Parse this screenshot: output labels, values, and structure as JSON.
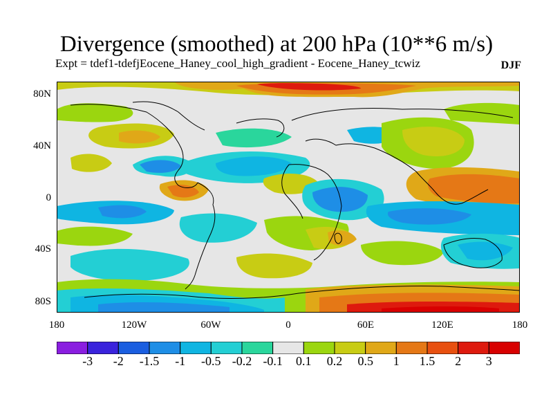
{
  "title": "Divergence (smoothed) at 200 hPa (10**6 m/s)",
  "subtitle": "Expt = tdef1-tdefjEocene_Haney_cool_high_gradient - Eocene_Haney_tcwiz",
  "season": "DJF",
  "lat_labels": [
    "80N",
    "40N",
    "0",
    "40S",
    "80S"
  ],
  "lon_labels": [
    "180",
    "120W",
    "60W",
    "0",
    "60E",
    "120E",
    "180"
  ],
  "colorbar": {
    "labels": [
      "-3",
      "-2",
      "-1.5",
      "-1",
      "-0.5",
      "-0.2",
      "-0.1",
      "0.1",
      "0.2",
      "0.5",
      "1",
      "1.5",
      "2",
      "3"
    ],
    "colors": [
      "#8a1ee0",
      "#3a23dc",
      "#1a5ee0",
      "#1e8ee6",
      "#0fb5e2",
      "#23cfd4",
      "#2ad69c",
      "#e6e6e6",
      "#9bd60f",
      "#c8cc14",
      "#e0a818",
      "#e57816",
      "#e85010",
      "#de1a0e",
      "#d80000"
    ]
  }
}
